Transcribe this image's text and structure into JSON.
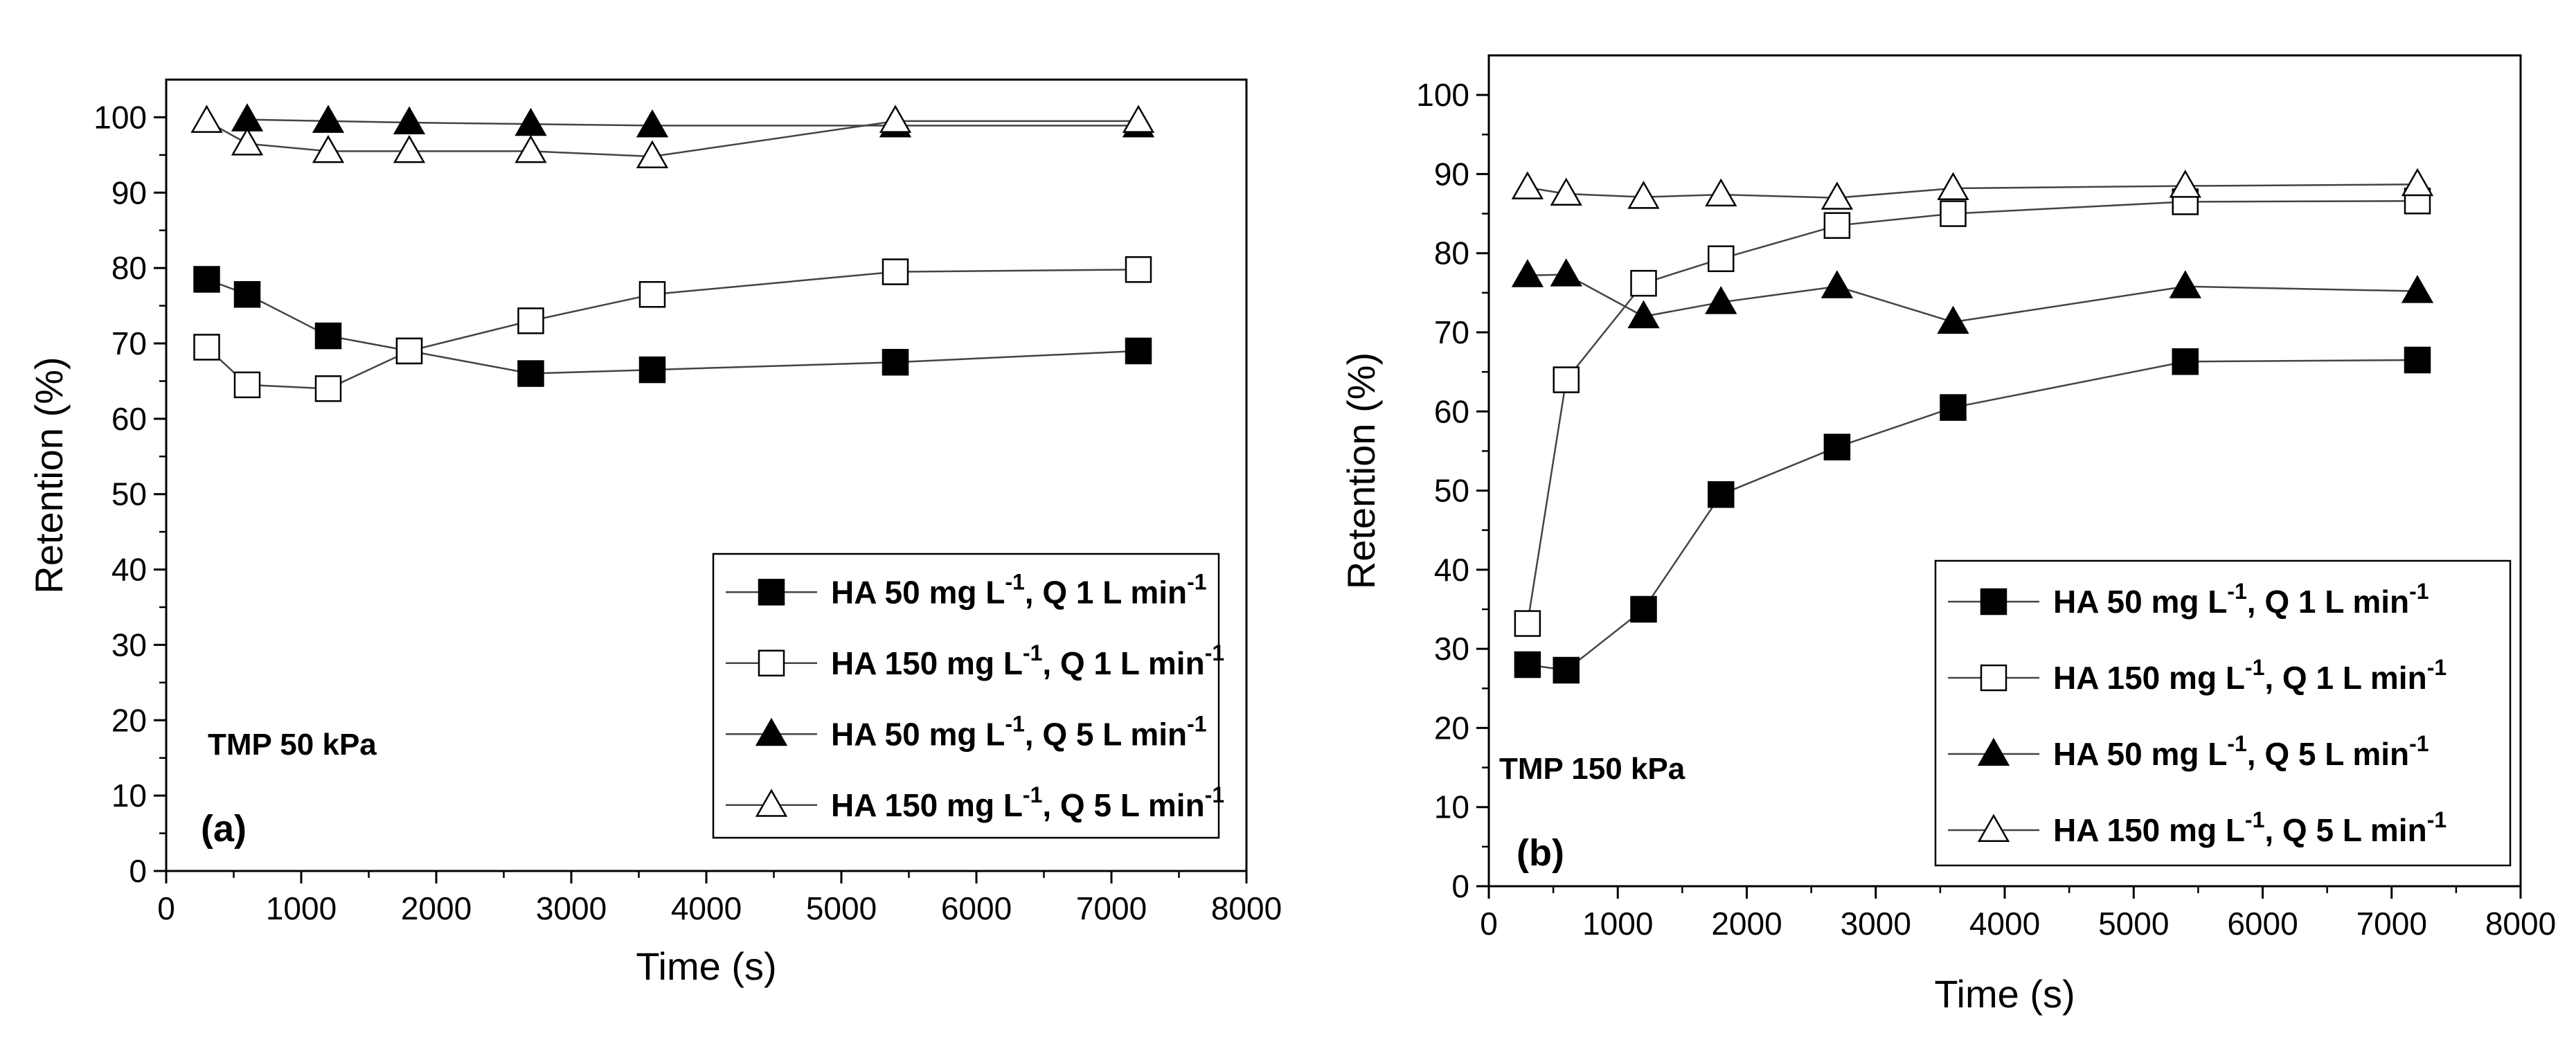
{
  "chart_data": [
    {
      "type": "line",
      "panel_label": "(a)",
      "condition": "TMP 50 kPa",
      "xlabel": "Time (s)",
      "ylabel": "Retention (%)",
      "xlim": [
        0,
        8000
      ],
      "ylim": [
        0,
        105
      ],
      "xticks": [
        0,
        1000,
        2000,
        3000,
        4000,
        5000,
        6000,
        7000,
        8000
      ],
      "yticks": [
        0,
        10,
        20,
        30,
        40,
        50,
        60,
        70,
        80,
        90,
        100
      ],
      "legend_position": "lower-right",
      "series": [
        {
          "name": "HA 50 mg L-1, Q 1 L min-1",
          "legend": {
            "a": "HA 50 mg L",
            "b": "-1",
            "c": ", Q 1 L min",
            "d": "-1"
          },
          "marker": "square-filled",
          "x": [
            300,
            600,
            1200,
            1800,
            2700,
            3600,
            5400,
            7200
          ],
          "y": [
            78.5,
            76.5,
            71,
            69,
            66,
            66.5,
            67.5,
            69
          ]
        },
        {
          "name": "HA 150 mg L-1, Q 1 L min-1",
          "legend": {
            "a": "HA 150 mg L",
            "b": "-1",
            "c": ", Q 1 L min",
            "d": "-1"
          },
          "marker": "square-open",
          "x": [
            300,
            600,
            1200,
            1800,
            2700,
            3600,
            5400,
            7200
          ],
          "y": [
            69.5,
            64.5,
            64,
            69,
            73,
            76.5,
            79.5,
            79.8
          ]
        },
        {
          "name": "HA 50 mg L-1, Q 5 L min-1",
          "legend": {
            "a": "HA 50 mg L",
            "b": "-1",
            "c": ", Q 5 L min",
            "d": "-1"
          },
          "marker": "triangle-filled",
          "x": [
            600,
            1200,
            1800,
            2700,
            3600,
            5400,
            7200
          ],
          "y": [
            99.7,
            99.5,
            99.3,
            99.1,
            98.9,
            98.9,
            98.9
          ]
        },
        {
          "name": "HA 150 mg L-1, Q 5 L min-1",
          "legend": {
            "a": "HA 150 mg L",
            "b": "-1",
            "c": ", Q 5 L min",
            "d": "-1"
          },
          "marker": "triangle-open",
          "x": [
            300,
            600,
            1200,
            1800,
            2700,
            3600,
            5400,
            7200
          ],
          "y": [
            99.5,
            96.5,
            95.5,
            95.5,
            95.5,
            94.8,
            99.5,
            99.5
          ]
        }
      ]
    },
    {
      "type": "line",
      "panel_label": "(b)",
      "condition": "TMP 150 kPa",
      "xlabel": "Time (s)",
      "ylabel": "Retention (%)",
      "xlim": [
        0,
        8000
      ],
      "ylim": [
        0,
        105
      ],
      "xticks": [
        0,
        1000,
        2000,
        3000,
        4000,
        5000,
        6000,
        7000,
        8000
      ],
      "yticks": [
        0,
        10,
        20,
        30,
        40,
        50,
        60,
        70,
        80,
        90,
        100
      ],
      "legend_position": "lower-right",
      "series": [
        {
          "name": "HA 50 mg L-1, Q 1 L min-1",
          "legend": {
            "a": "HA 50 mg L",
            "b": "-1",
            "c": ", Q 1 L min",
            "d": "-1"
          },
          "marker": "square-filled",
          "x": [
            300,
            600,
            1200,
            1800,
            2700,
            3600,
            5400,
            7200
          ],
          "y": [
            28,
            27.3,
            35,
            49.5,
            55.5,
            60.5,
            66.3,
            66.5
          ]
        },
        {
          "name": "HA 150 mg L-1, Q 1 L min-1",
          "legend": {
            "a": "HA 150 mg L",
            "b": "-1",
            "c": ", Q 1 L min",
            "d": "-1"
          },
          "marker": "square-open",
          "x": [
            300,
            600,
            1200,
            1800,
            2700,
            3600,
            5400,
            7200
          ],
          "y": [
            33.2,
            64,
            76.2,
            79.3,
            83.5,
            85,
            86.5,
            86.6
          ]
        },
        {
          "name": "HA 50 mg L-1, Q 5 L min-1",
          "legend": {
            "a": "HA 50 mg L",
            "b": "-1",
            "c": ", Q 5 L min",
            "d": "-1"
          },
          "marker": "triangle-filled",
          "x": [
            300,
            600,
            1200,
            1800,
            2700,
            3600,
            5400,
            7200
          ],
          "y": [
            77.2,
            77.3,
            72,
            73.8,
            75.8,
            71.3,
            75.8,
            75.2
          ]
        },
        {
          "name": "HA 150 mg L-1, Q 5 L min-1",
          "legend": {
            "a": "HA 150 mg L",
            "b": "-1",
            "c": ", Q 5 L min",
            "d": "-1"
          },
          "marker": "triangle-open",
          "x": [
            300,
            600,
            1200,
            1800,
            2700,
            3600,
            5400,
            7200
          ],
          "y": [
            88.3,
            87.5,
            87.1,
            87.4,
            87,
            88.2,
            88.5,
            88.7
          ]
        }
      ]
    }
  ]
}
